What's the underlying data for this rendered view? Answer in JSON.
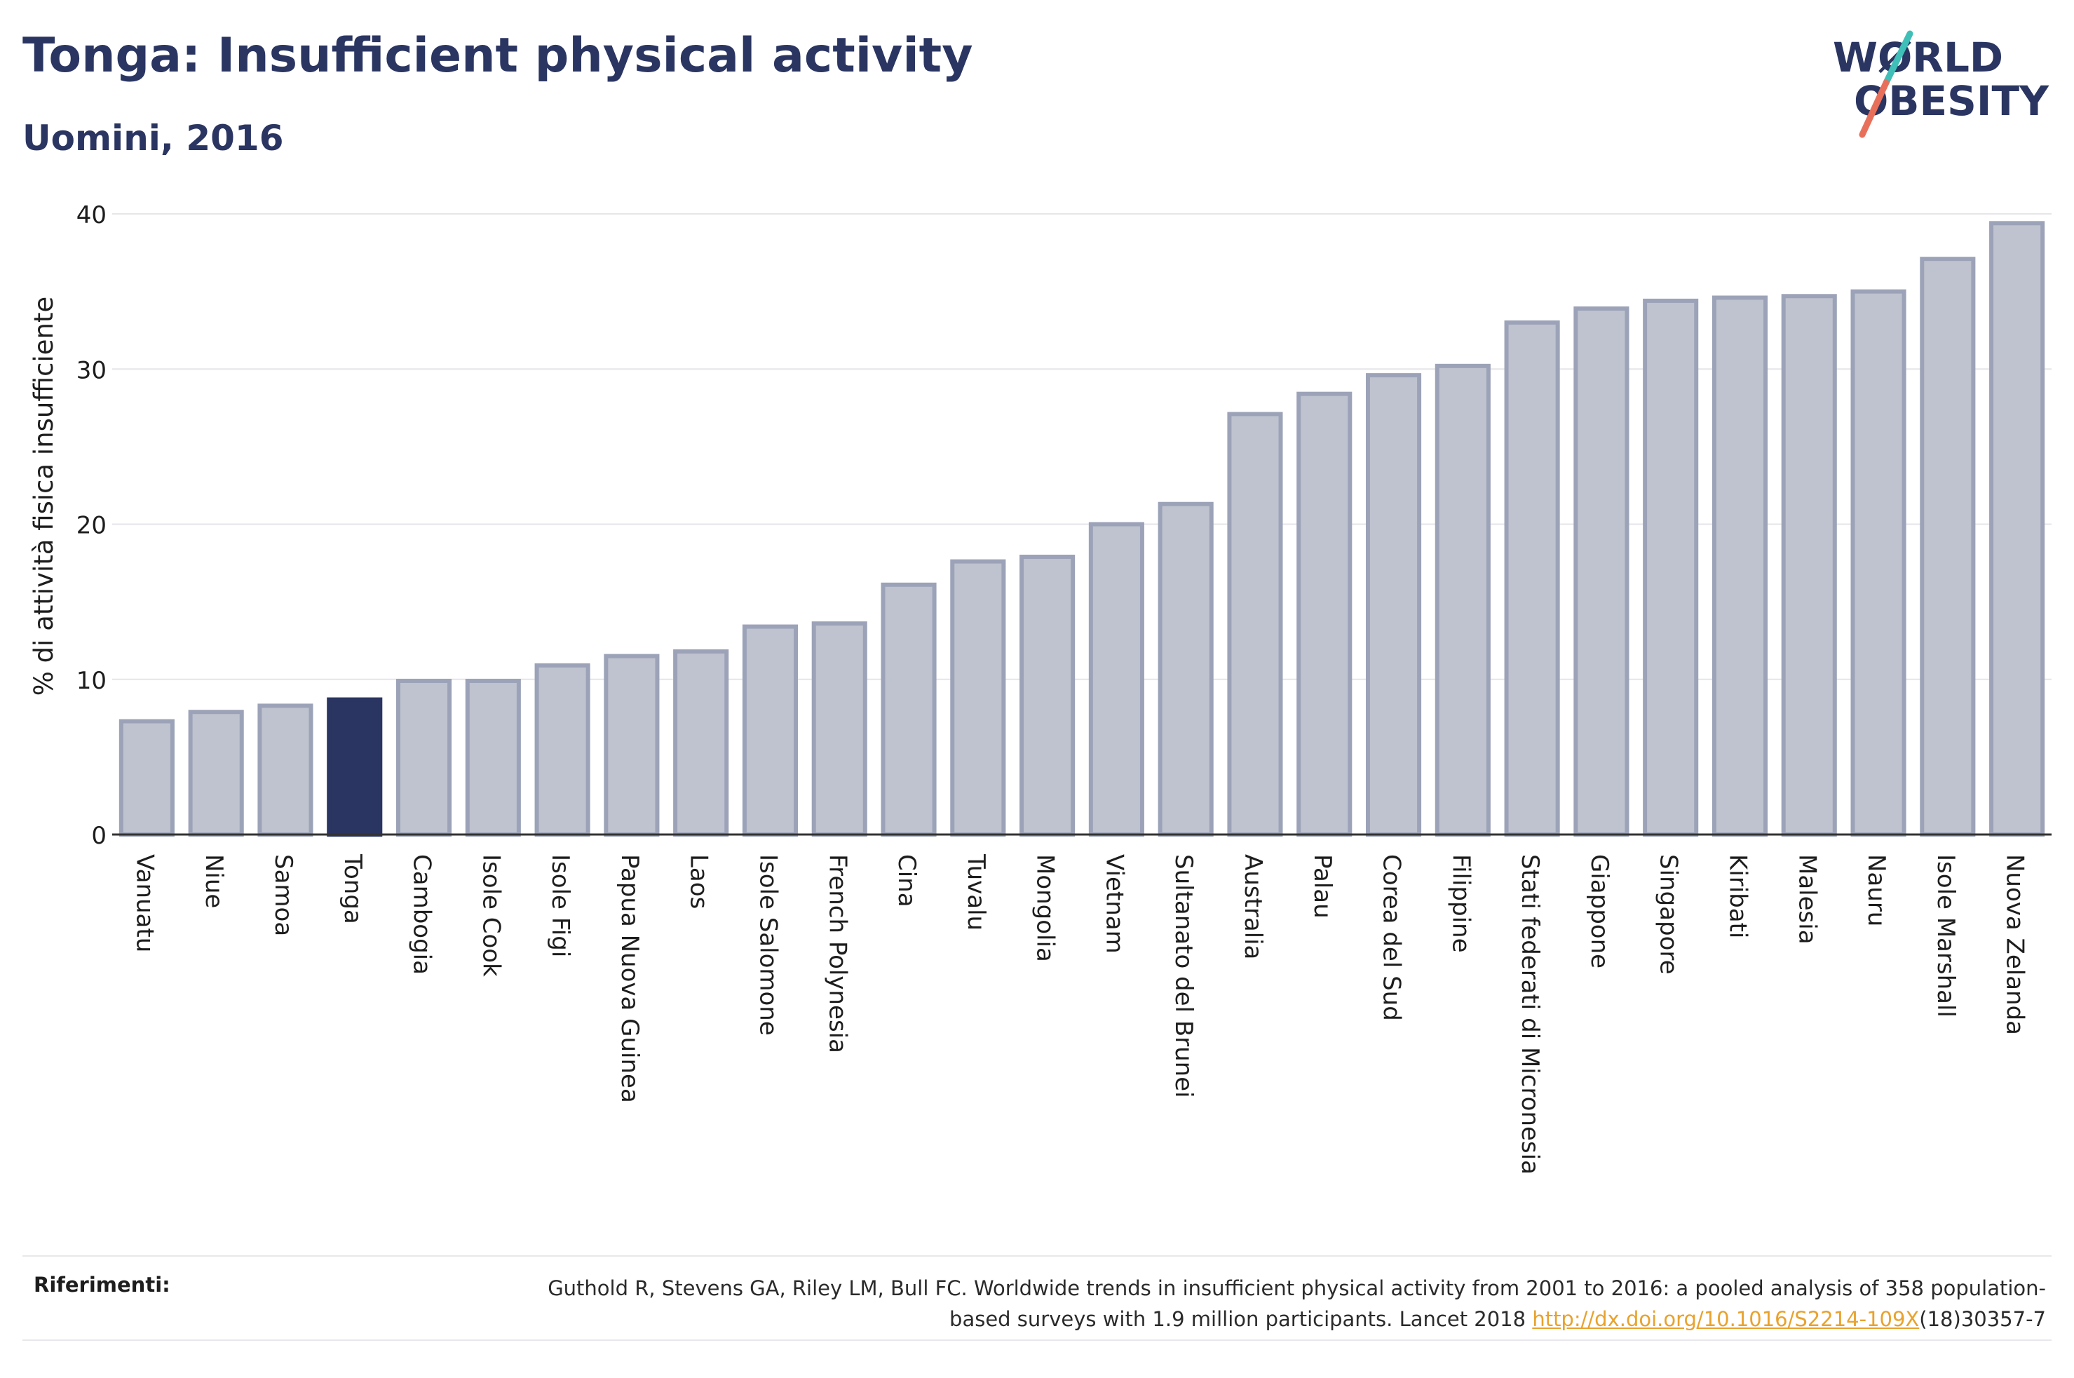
{
  "header": {
    "title": "Tonga: Insufficient physical activity",
    "subtitle": "Uomini, 2016"
  },
  "logo": {
    "line1": "WØRLD",
    "line2": "OBESITY",
    "slash_colors": [
      "#3fbfb8",
      "#e8705b"
    ]
  },
  "chart_data": {
    "type": "bar",
    "title": "Tonga: Insufficient physical activity",
    "subtitle": "Uomini, 2016",
    "xlabel": "",
    "ylabel": "% di attività fisica insufficiente",
    "ylim": [
      0,
      40
    ],
    "yticks": [
      0,
      10,
      20,
      30,
      40
    ],
    "grid": true,
    "highlight": "Tonga",
    "colors": {
      "bar": "#bfc3cf",
      "bar_border": "#9ca3b8",
      "highlight": "#2a3561",
      "grid": "#e6e6ea",
      "axis": "#333333"
    },
    "categories": [
      "Vanuatu",
      "Niue",
      "Samoa",
      "Tonga",
      "Cambogia",
      "Isole Cook",
      "Isole Figi",
      "Papua Nuova Guinea",
      "Laos",
      "Isole Salomone",
      "French Polynesia",
      "Cina",
      "Tuvalu",
      "Mongolia",
      "Vietnam",
      "Sultanato del Brunei",
      "Australia",
      "Palau",
      "Corea del Sud",
      "Filippine",
      "Stati federati di Micronesia",
      "Giappone",
      "Singapore",
      "Kiribati",
      "Malesia",
      "Nauru",
      "Isole Marshall",
      "Nuova Zelanda"
    ],
    "values": [
      7.3,
      7.9,
      8.3,
      8.7,
      9.9,
      9.9,
      10.9,
      11.5,
      11.8,
      13.4,
      13.6,
      16.1,
      17.6,
      17.9,
      20.0,
      21.3,
      27.1,
      28.4,
      29.6,
      30.2,
      33.0,
      33.9,
      34.4,
      34.6,
      34.7,
      35.0,
      37.1,
      39.4
    ]
  },
  "references": {
    "label": "Riferimenti:",
    "text": "Guthold R, Stevens GA, Riley LM, Bull FC. Worldwide trends in insufficient physical activity from 2001 to 2016: a pooled analysis of 358 population-based surveys with 1.9 million participants. Lancet 2018 ",
    "link": "http://dx.doi.org/10.1016/S2214-109X",
    "suffix": "(18)30357-7"
  }
}
